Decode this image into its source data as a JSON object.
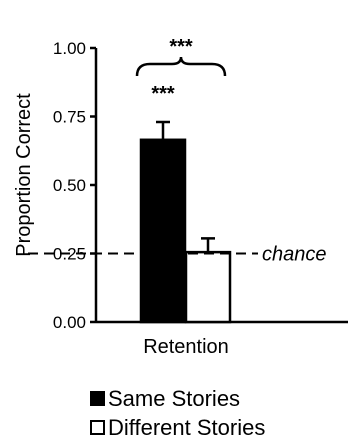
{
  "chart_data": {
    "type": "bar",
    "categories": [
      "Retention"
    ],
    "series": [
      {
        "name": "Same Stories",
        "values": [
          0.665
        ],
        "error": [
          0.065
        ],
        "color": "#000000"
      },
      {
        "name": "Different Stories",
        "values": [
          0.255
        ],
        "error": [
          0.05
        ],
        "color": "#ffffff"
      }
    ],
    "ylabel": "Proportion Correct",
    "xlabel": "",
    "ylim": [
      0,
      1.0
    ],
    "yticks": [
      "0.00",
      "0.25",
      "0.50",
      "0.75",
      "1.00"
    ],
    "reference_line": {
      "value": 0.25,
      "label": "chance",
      "style": "dashed"
    },
    "annotations": [
      {
        "text": "***",
        "target": "Same Stories"
      },
      {
        "text": "***",
        "target": "bracket between series"
      }
    ],
    "legend_position": "bottom",
    "grid": false
  }
}
